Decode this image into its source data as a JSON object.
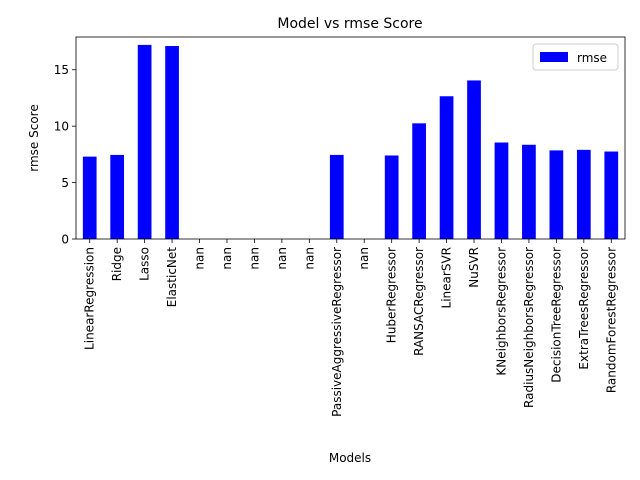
{
  "chart_data": {
    "type": "bar",
    "title": "Model vs rmse Score",
    "xlabel": "Models",
    "ylabel": "rmse Score",
    "ylim": [
      0,
      17.9
    ],
    "yticks": [
      0,
      5,
      10,
      15
    ],
    "grid": false,
    "legend_position": "top-right",
    "categories": [
      "LinearRegression",
      "Ridge",
      "Lasso",
      "ElasticNet",
      "nan",
      "nan",
      "nan",
      "nan",
      "nan",
      "PassiveAggressiveRegressor",
      "nan",
      "HuberRegressor",
      "RANSACRegressor",
      "LinearSVR",
      "NuSVR",
      "KNeighborsRegressor",
      "RadiusNeighborsRegressor",
      "DecisionTreeRegressor",
      "ExtraTreesRegressor",
      "RandomForestRegressor"
    ],
    "series": [
      {
        "name": "rmse",
        "color": "#0000ff",
        "values": [
          7.3,
          7.45,
          17.2,
          17.1,
          null,
          null,
          null,
          null,
          null,
          7.45,
          null,
          7.4,
          10.25,
          12.65,
          14.05,
          8.55,
          8.35,
          7.85,
          7.9,
          7.75
        ]
      }
    ]
  }
}
